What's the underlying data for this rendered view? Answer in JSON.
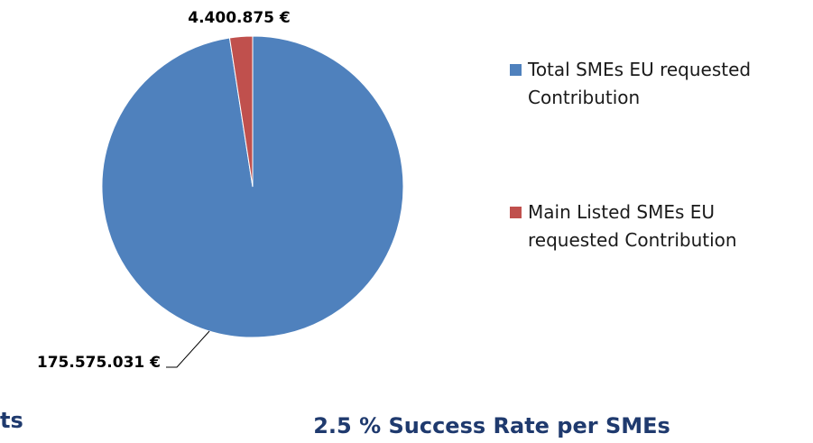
{
  "chart_data": {
    "type": "pie",
    "labels": [
      "Total SMEs EU requested Contribution",
      "Main Listed SMEs EU requested Contribution"
    ],
    "values": [
      175575031,
      4400875
    ],
    "value_labels": [
      "175.575.031 €",
      "4.400.875 €"
    ],
    "colors": [
      "#4f81bd",
      "#c0504d"
    ],
    "legend": "right"
  },
  "captions": {
    "left": "ts",
    "center": "2.5 % Success Rate per SMEs"
  }
}
